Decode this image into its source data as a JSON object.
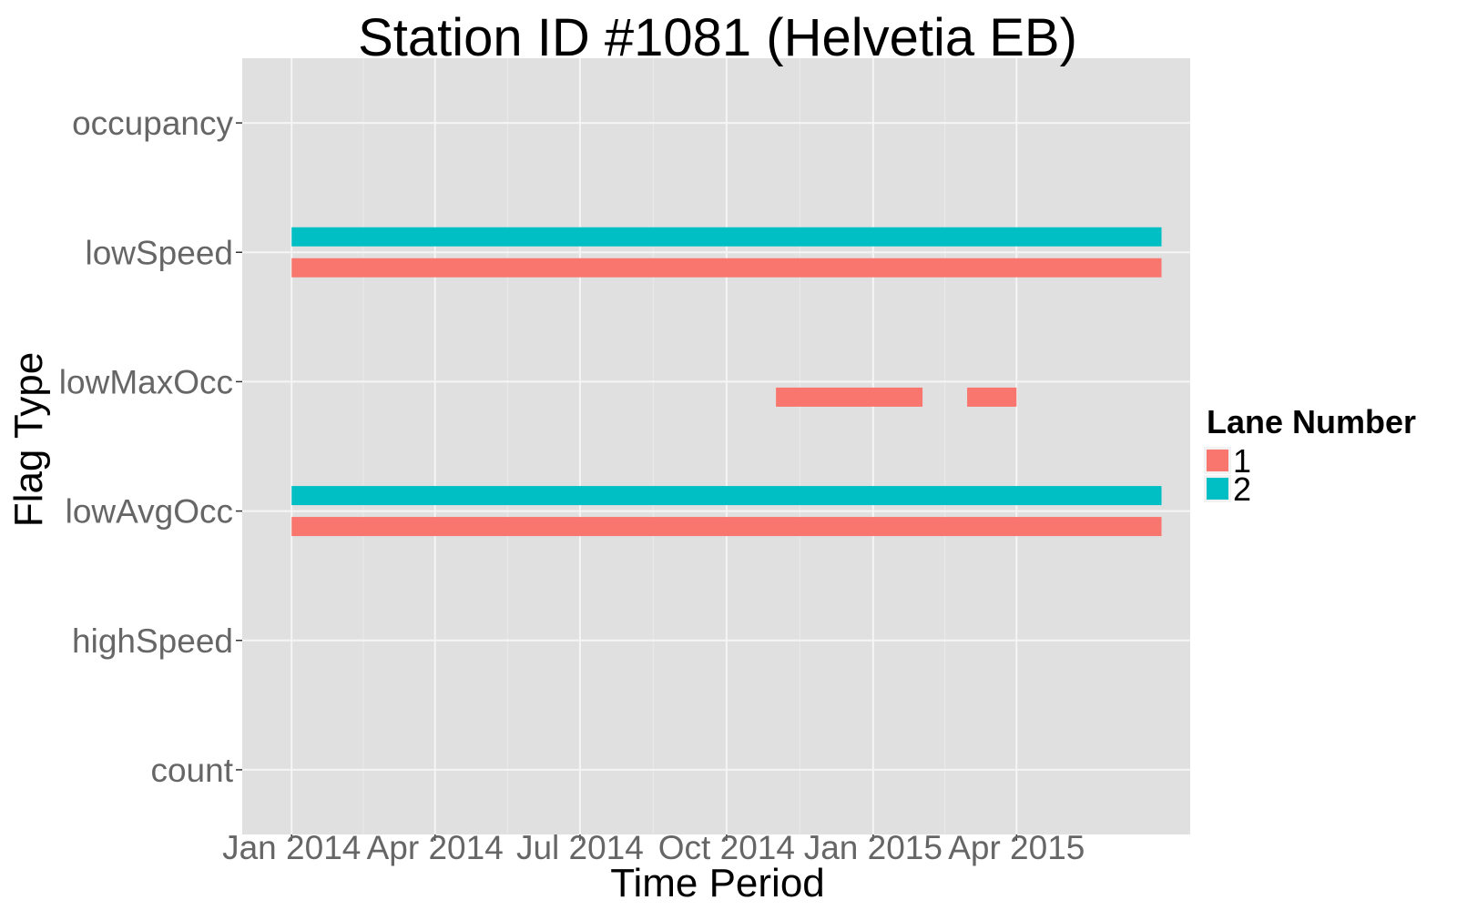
{
  "chart_data": {
    "type": "bar",
    "subtype": "horizontal-timeline",
    "title": "Station ID #1081 (Helvetia EB)",
    "xlabel": "Time Period",
    "ylabel": "Flag Type",
    "x_scale": "date",
    "xlim": [
      "2013-12-01",
      "2015-07-19"
    ],
    "x_ticks": [
      {
        "label": "Jan 2014",
        "date": "2014-01-01"
      },
      {
        "label": "Apr 2014",
        "date": "2014-04-01"
      },
      {
        "label": "Jul 2014",
        "date": "2014-07-01"
      },
      {
        "label": "Oct 2014",
        "date": "2014-10-01"
      },
      {
        "label": "Jan 2015",
        "date": "2015-01-01"
      },
      {
        "label": "Apr 2015",
        "date": "2015-04-01"
      }
    ],
    "categories": [
      "count",
      "highSpeed",
      "lowAvgOcc",
      "lowMaxOcc",
      "lowSpeed",
      "occupancy"
    ],
    "grid": true,
    "legend": {
      "title": "Lane Number",
      "placement": "right",
      "entries": [
        {
          "label": "1",
          "color": "#F8766D"
        },
        {
          "label": "2",
          "color": "#00BFC4"
        }
      ]
    },
    "series": [
      {
        "name": "1",
        "color": "#F8766D",
        "intervals": [
          {
            "category": "lowSpeed",
            "start": "2014-01-01",
            "end": "2015-07-01"
          },
          {
            "category": "lowMaxOcc",
            "start": "2014-11-01",
            "end": "2015-02-01"
          },
          {
            "category": "lowMaxOcc",
            "start": "2015-03-01",
            "end": "2015-04-01"
          },
          {
            "category": "lowAvgOcc",
            "start": "2014-01-01",
            "end": "2015-07-01"
          }
        ]
      },
      {
        "name": "2",
        "color": "#00BFC4",
        "intervals": [
          {
            "category": "lowSpeed",
            "start": "2014-01-01",
            "end": "2015-07-01"
          },
          {
            "category": "lowAvgOcc",
            "start": "2014-01-01",
            "end": "2015-07-01"
          }
        ]
      }
    ],
    "colors": {
      "panel_background": "#E0E0E0",
      "grid_major": "#F5F5F5",
      "grid_minor": "#EAEAEA",
      "tick_text": "#666666"
    }
  }
}
